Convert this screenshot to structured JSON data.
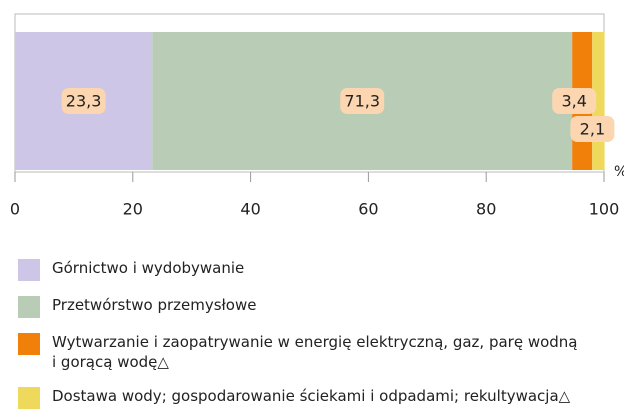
{
  "chart_data": {
    "type": "stacked_bar_horizontal",
    "unit": "%",
    "xlim": [
      0,
      100
    ],
    "xticks": [
      0,
      20,
      40,
      60,
      80,
      100
    ],
    "series": [
      {
        "name": "Górnictwo i wydobywanie",
        "color": "#cdc6e6",
        "values": [
          23.3
        ],
        "value_labels": [
          "23,3"
        ]
      },
      {
        "name": "Przetwórstwo przemysłowe",
        "color": "#b8ccb6",
        "values": [
          71.3
        ],
        "value_labels": [
          "71,3"
        ]
      },
      {
        "name": "Wytwarzanie i zaopatrywanie w energię elektryczną, gaz, parę wodną i gorącą wodę△",
        "color": "#f0800a",
        "values": [
          3.4
        ],
        "value_labels": [
          "3,4"
        ]
      },
      {
        "name": "Dostawa wody; gospodarowanie ściekami i odpadami; rekultywacja△",
        "color": "#efd95c",
        "values": [
          2.1
        ],
        "value_labels": [
          "2,1"
        ]
      }
    ]
  }
}
